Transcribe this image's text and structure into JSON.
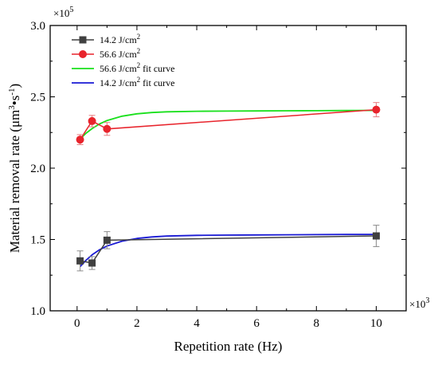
{
  "chart_data": {
    "type": "line",
    "xlabel": "Repetition rate (Hz)",
    "ylabel_main": "Material removal rate (μm",
    "ylabel_sup1": "3",
    "ylabel_mid": "•s",
    "ylabel_sup2": "-1",
    "ylabel_end": ")",
    "x_multiplier_base": "×10",
    "x_multiplier_exp": "3",
    "y_multiplier_base": "×10",
    "y_multiplier_exp": "5",
    "xlim": [
      -0.9,
      11.0
    ],
    "ylim": [
      1.0,
      3.0
    ],
    "x_ticks": [
      0,
      2,
      4,
      6,
      8,
      10
    ],
    "x_tick_labels": [
      "0",
      "2",
      "4",
      "6",
      "8",
      "10"
    ],
    "y_ticks": [
      1.0,
      1.5,
      2.0,
      2.5,
      3.0
    ],
    "y_tick_labels": [
      "1.0",
      "1.5",
      "2.0",
      "2.5",
      "3.0"
    ],
    "grid": false,
    "legend_position": "top-left",
    "series": [
      {
        "name": "14.2 J/cm",
        "name_sup": "2",
        "name_suffix": "",
        "kind": "marker-line",
        "marker": "square",
        "color": "#404040",
        "x": [
          0.1,
          0.5,
          1.0,
          10.0
        ],
        "y": [
          1.35,
          1.335,
          1.495,
          1.525
        ],
        "err": [
          0.07,
          0.045,
          0.06,
          0.075
        ]
      },
      {
        "name": "56.6 J/cm",
        "name_sup": "2",
        "name_suffix": "",
        "kind": "marker-line",
        "marker": "circle",
        "color": "#e8242c",
        "x": [
          0.1,
          0.5,
          1.0,
          10.0
        ],
        "y": [
          2.2,
          2.33,
          2.275,
          2.41
        ],
        "err": [
          0.035,
          0.04,
          0.045,
          0.05
        ]
      },
      {
        "name": "56.6 J/cm",
        "name_sup": "2",
        "name_suffix": " fit curve",
        "kind": "fit",
        "color": "#19e01c",
        "x": [
          0.1,
          0.3,
          0.5,
          0.75,
          1.0,
          1.5,
          2.0,
          2.5,
          3.0,
          4.0,
          5.0,
          6.0,
          7.0,
          8.0,
          9.0,
          10.0
        ],
        "y": [
          2.205,
          2.245,
          2.277,
          2.31,
          2.334,
          2.364,
          2.381,
          2.39,
          2.395,
          2.399,
          2.4,
          2.401,
          2.402,
          2.403,
          2.404,
          2.405
        ]
      },
      {
        "name": "14.2 J/cm",
        "name_sup": "2",
        "name_suffix": " fit curve",
        "kind": "fit",
        "color": "#1a1ad4",
        "x": [
          0.1,
          0.3,
          0.5,
          0.75,
          1.0,
          1.5,
          2.0,
          2.5,
          3.0,
          4.0,
          5.0,
          6.0,
          7.0,
          8.0,
          9.0,
          10.0
        ],
        "y": [
          1.31,
          1.355,
          1.392,
          1.428,
          1.454,
          1.488,
          1.507,
          1.518,
          1.524,
          1.529,
          1.531,
          1.532,
          1.533,
          1.534,
          1.535,
          1.536
        ]
      }
    ]
  }
}
